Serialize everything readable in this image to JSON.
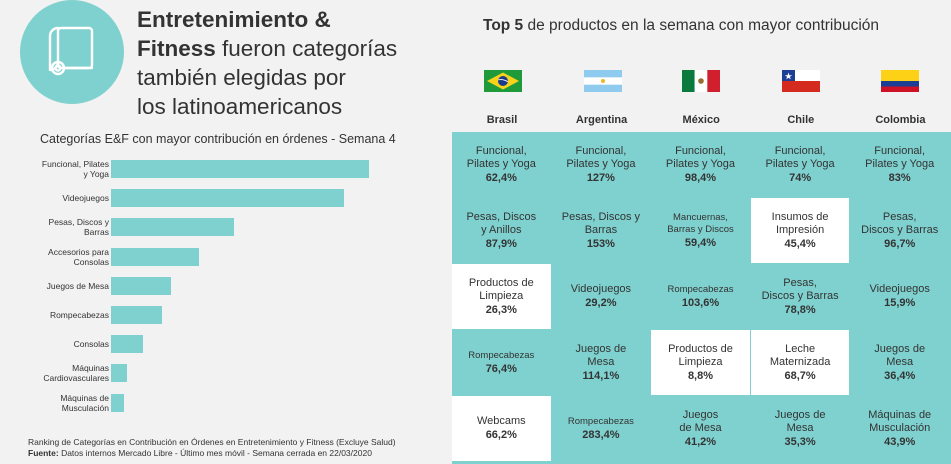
{
  "headline": {
    "bold1": "Entretenimiento &",
    "bold2": "Fitness",
    "rest1": " fueron categorías",
    "line3": "también elegidas por",
    "line4": "los latinoamericanos"
  },
  "chart_data": {
    "type": "bar",
    "orientation": "horizontal",
    "title": "Categorías E&F con mayor contribución en órdenes - Semana 4",
    "categories": [
      "Funcional, Pilates y Yoga",
      "Videojuegos",
      "Pesas, Discos y Barras",
      "Accesorios para Consolas",
      "Juegos de Mesa",
      "Rompecabezas",
      "Consolas",
      "Máquinas Cardiovasculares",
      "Máquinas de Musculación"
    ],
    "labels_display": [
      [
        "Funcional, Pilates",
        "y Yoga"
      ],
      [
        "Videojuegos"
      ],
      [
        "Pesas, Discos y",
        "Barras"
      ],
      [
        "Accesorios para",
        "Consolas"
      ],
      [
        "Juegos de Mesa"
      ],
      [
        "Rompecabezas"
      ],
      [
        "Consolas"
      ],
      [
        "Máquinas",
        "Cardiovasculares"
      ],
      [
        "Máquinas de",
        "Musculación"
      ]
    ],
    "values": [
      100,
      90.5,
      47.5,
      34.3,
      23.4,
      19.7,
      12.4,
      6.2,
      5.1
    ],
    "xlim": [
      0,
      100
    ],
    "grid": false,
    "legend": "none"
  },
  "footnote": {
    "line1": "Ranking de Categorías en Contribución en Órdenes en Entretenimiento y Fitness (Excluye Salud)",
    "source_label": "Fuente:",
    "source_text": " Datos internos Mercado Libre - Último mes móvil - Semana cerrada en 22/03/2020"
  },
  "table": {
    "title_bold": "Top 5",
    "title_rest": " de productos en la semana con mayor contribución",
    "accent_color": "#7fd1cf",
    "highlight_color": "#ffffff",
    "countries": [
      {
        "name": "Brasil",
        "flag": "brazil-flag-icon"
      },
      {
        "name": "Argentina",
        "flag": "argentina-flag-icon"
      },
      {
        "name": "México",
        "flag": "mexico-flag-icon"
      },
      {
        "name": "Chile",
        "flag": "chile-flag-icon"
      },
      {
        "name": "Colombia",
        "flag": "colombia-flag-icon"
      }
    ],
    "rows": [
      [
        {
          "name": "Funcional,\nPilates y Yoga",
          "pct": "62,4%"
        },
        {
          "name": "Funcional,\nPilates y Yoga",
          "pct": "127%"
        },
        {
          "name": "Funcional,\nPilates y Yoga",
          "pct": "98,4%"
        },
        {
          "name": "Funcional,\nPilates y Yoga",
          "pct": "74%"
        },
        {
          "name": "Funcional,\nPilates y Yoga",
          "pct": "83%"
        }
      ],
      [
        {
          "name": "Pesas, Discos\ny Anillos",
          "pct": "87,9%"
        },
        {
          "name": "Pesas, Discos y\nBarras",
          "pct": "153%"
        },
        {
          "name": "Mancuernas,\nBarras y Discos",
          "pct": "59,4%",
          "small": true
        },
        {
          "name": "Insumos de\nImpresión",
          "pct": "45,4%",
          "highlight": true
        },
        {
          "name": "Pesas,\nDiscos y Barras",
          "pct": "96,7%"
        }
      ],
      [
        {
          "name": "Productos de\nLimpieza",
          "pct": "26,3%",
          "highlight": true
        },
        {
          "name": "Videojuegos",
          "pct": "29,2%"
        },
        {
          "name": "Rompecabezas",
          "pct": "103,6%",
          "small": true
        },
        {
          "name": "Pesas,\nDiscos y Barras",
          "pct": "78,8%"
        },
        {
          "name": "Videojuegos",
          "pct": "15,9%"
        }
      ],
      [
        {
          "name": "Rompecabezas",
          "pct": "76,4%",
          "small": true
        },
        {
          "name": "Juegos de\nMesa",
          "pct": "114,1%"
        },
        {
          "name": "Productos de\nLimpieza",
          "pct": "8,8%",
          "highlight": true
        },
        {
          "name": "Leche\nMaternizada",
          "pct": "68,7%",
          "highlight": true
        },
        {
          "name": "Juegos de\nMesa",
          "pct": "36,4%"
        }
      ],
      [
        {
          "name": "Webcams",
          "pct": "66,2%",
          "highlight": true
        },
        {
          "name": "Rompecabezas",
          "pct": "283,4%",
          "small": true
        },
        {
          "name": "Juegos\nde Mesa",
          "pct": "41,2%"
        },
        {
          "name": "Juegos de\nMesa",
          "pct": "35,3%"
        },
        {
          "name": "Máquinas de\nMusculación",
          "pct": "43,9%"
        }
      ]
    ]
  }
}
